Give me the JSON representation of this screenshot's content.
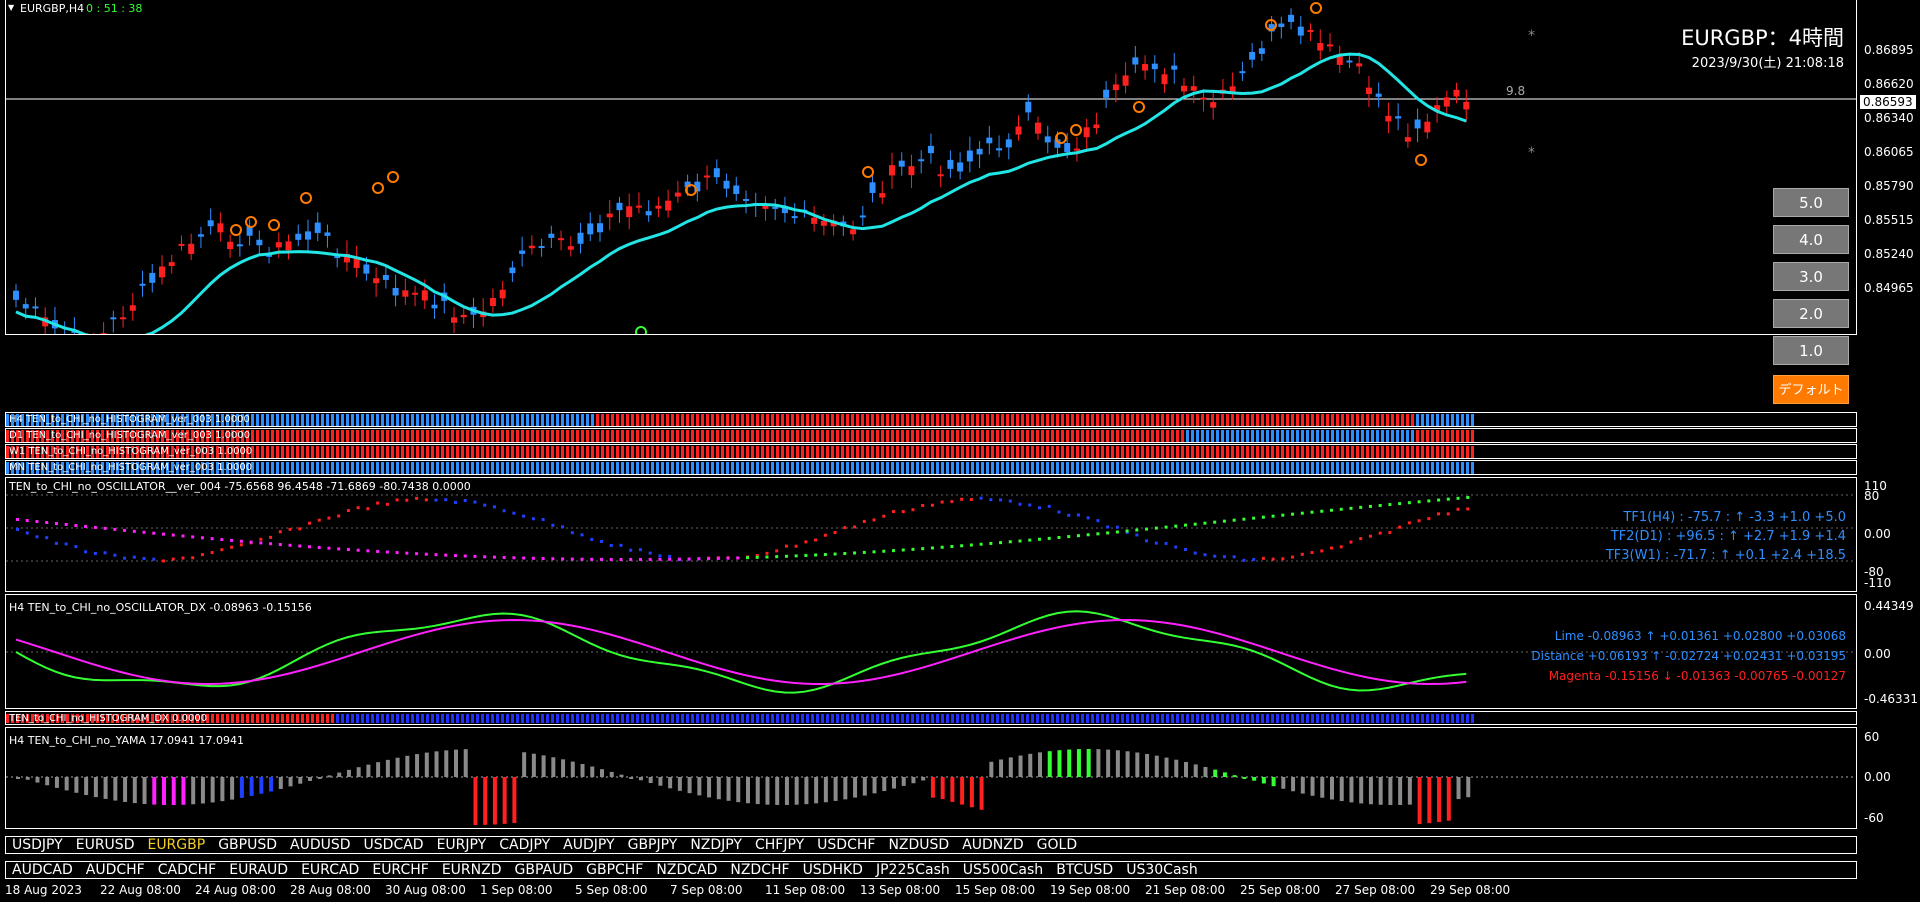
{
  "chart": {
    "symbol": "EURGBP,H4",
    "timer": "0 : 51 : 38",
    "title": "EURGBP：4時間",
    "datetime": "2023/9/30(土) 21:08:18",
    "price_label": "9.8",
    "current_price": "0.86593",
    "price_ticks": [
      "0.86895",
      "0.86620",
      "0.86340",
      "0.86065",
      "0.85790",
      "0.85515",
      "0.85240",
      "0.84965"
    ]
  },
  "buttons": [
    "5.0",
    "4.0",
    "3.0",
    "2.0",
    "1.0"
  ],
  "default_button": "デフォルト",
  "histograms": [
    "H4 TEN_to_CHI_no_HISTOGRAM_ver_003 1.0000",
    "D1 TEN_to_CHI_no_HISTOGRAM_ver_003 1.0000",
    "W1 TEN_to_CHI_no_HISTOGRAM_ver_003 1.0000",
    "MN TEN_to_CHI_no_HISTOGRAM_ver_003 1.0000"
  ],
  "oscillator": {
    "label": "TEN_to_CHI_no_OSCILLATOR__ver_004 -75.6568 96.4548 -71.6869 -80.7438 0.0000",
    "tf1": "TF1(H4) : -75.7 : ↑ -3.3 +1.0 +5.0",
    "tf2": "TF2(D1) : +96.5 : ↑ +2.7 +1.9 +1.4",
    "tf3": "TF3(W1) : -71.7 : ↑ +0.1 +2.4 +18.5",
    "ticks": [
      "110",
      "80",
      "0.00",
      "-80",
      "-110"
    ]
  },
  "dx": {
    "label": "H4 TEN_to_CHI_no_OSCILLATOR_DX -0.08963 -0.15156",
    "lime": "Lime -0.08963 ↑ +0.01361 +0.02800 +0.03068",
    "distance": "Distance +0.06193 ↑ -0.02724 +0.02431 +0.03195",
    "magenta": "Magenta -0.15156 ↓ -0.01363 -0.00765 -0.00127",
    "ticks": [
      "0.44349",
      "0.00",
      "-0.46331"
    ]
  },
  "dx_hist_label": "TEN_to_CHI_no_HISTOGRAM_DX 0.0000",
  "yama": {
    "label": "H4  TEN_to_CHI_no_YAMA 17.0941 17.0941",
    "ticks": [
      "60",
      "0.00",
      "-60"
    ]
  },
  "symbols_row1": [
    "USDJPY",
    "EURUSD",
    "EURGBP",
    "GBPUSD",
    "AUDUSD",
    "USDCAD",
    "EURJPY",
    "CADJPY",
    "AUDJPY",
    "GBPJPY",
    "NZDJPY",
    "CHFJPY",
    "USDCHF",
    "NZDUSD",
    "AUDNZD",
    "GOLD"
  ],
  "symbols_row2": [
    "AUDCAD",
    "AUDCHF",
    "CADCHF",
    "EURAUD",
    "EURCAD",
    "EURCHF",
    "EURNZD",
    "GBPAUD",
    "GBPCHF",
    "NZDCAD",
    "NZDCHF",
    "USDHKD",
    "JP225Cash",
    "US500Cash",
    "BTCUSD",
    "US30Cash"
  ],
  "time_axis": [
    "18 Aug 2023",
    "22 Aug 08:00",
    "24 Aug 08:00",
    "28 Aug 08:00",
    "30 Aug 08:00",
    "1 Sep 08:00",
    "5 Sep 08:00",
    "7 Sep 08:00",
    "11 Sep 08:00",
    "13 Sep 08:00",
    "15 Sep 08:00",
    "19 Sep 08:00",
    "21 Sep 08:00",
    "25 Sep 08:00",
    "27 Sep 08:00",
    "29 Sep 08:00"
  ],
  "colors": {
    "up": "#2e8fff",
    "down": "#ff2020",
    "cyan": "#22e5e5",
    "magenta": "#ff22ff",
    "lime": "#33ff33",
    "gray": "#8a8a8a",
    "orange": "#ff7a00",
    "timer": "#33ff33"
  }
}
